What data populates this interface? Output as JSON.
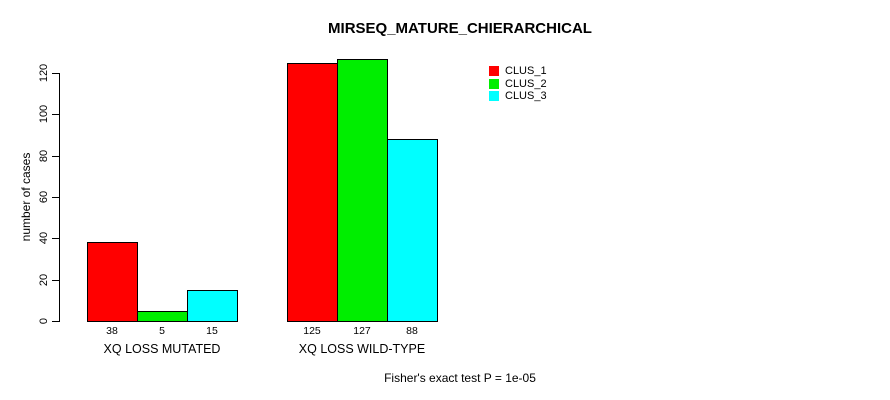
{
  "chart_data": {
    "type": "bar",
    "title": "MIRSEQ_MATURE_CHIERARCHICAL",
    "ylabel": "number of cases",
    "xlabel": "",
    "categories": [
      "XQ LOSS MUTATED",
      "XQ LOSS WILD-TYPE"
    ],
    "series": [
      {
        "name": "CLUS_1",
        "color": "#ff0000",
        "values": [
          38,
          125
        ]
      },
      {
        "name": "CLUS_2",
        "color": "#00ee00",
        "values": [
          5,
          127
        ]
      },
      {
        "name": "CLUS_3",
        "color": "#00ffff",
        "values": [
          15,
          88
        ]
      }
    ],
    "bar_value_labels": [
      [
        38,
        5,
        15
      ],
      [
        125,
        127,
        88
      ]
    ],
    "yticks": [
      0,
      20,
      40,
      60,
      80,
      100,
      120
    ],
    "ylim": [
      0,
      130
    ],
    "grid": false,
    "legend_position": "top-right",
    "bar_border_color": "#000000",
    "footnote": "Fisher's exact test P = 1e-05"
  }
}
